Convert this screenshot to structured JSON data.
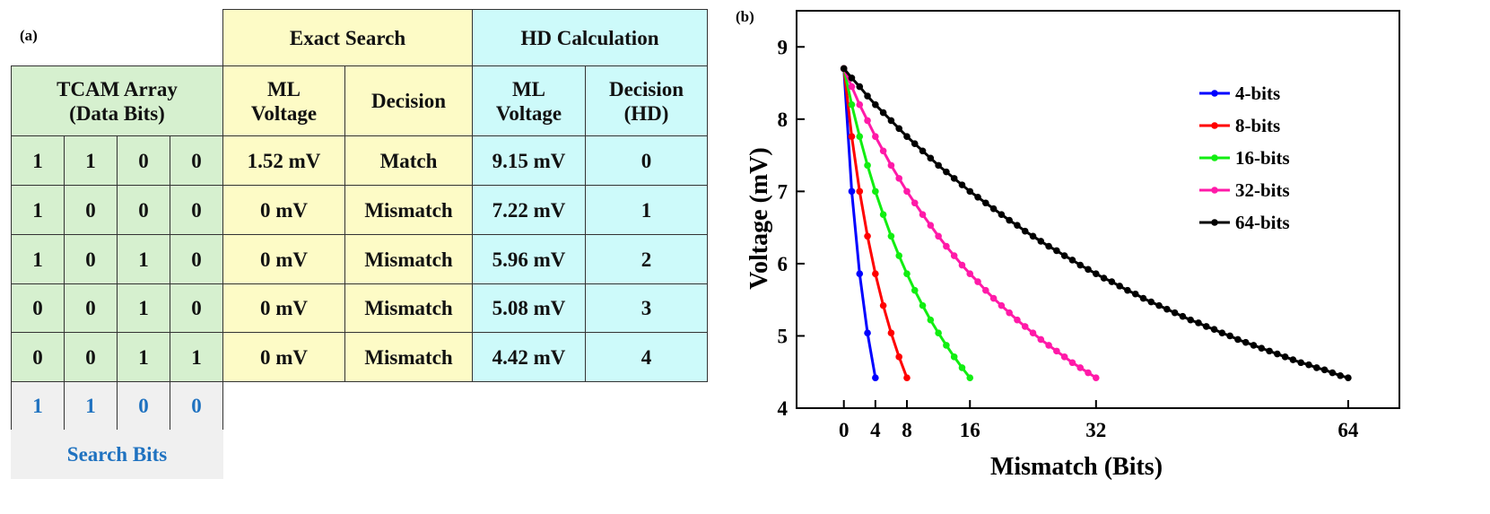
{
  "panel_a": {
    "label": "(a)",
    "groups": [
      "Exact Search",
      "HD Calculation"
    ],
    "headers": [
      [
        "TCAM Array",
        "(Data Bits)"
      ],
      [
        "ML",
        "Voltage"
      ],
      [
        "Decision"
      ],
      [
        "ML",
        "Voltage"
      ],
      [
        "Decision",
        "(HD)"
      ]
    ],
    "rows": [
      {
        "bits": [
          1,
          1,
          0,
          0
        ],
        "exact_voltage": "1.52 mV",
        "exact_decision": "Match",
        "hd_voltage": "9.15 mV",
        "hd": 0
      },
      {
        "bits": [
          1,
          0,
          0,
          0
        ],
        "exact_voltage": "0 mV",
        "exact_decision": "Mismatch",
        "hd_voltage": "7.22 mV",
        "hd": 1
      },
      {
        "bits": [
          1,
          0,
          1,
          0
        ],
        "exact_voltage": "0 mV",
        "exact_decision": "Mismatch",
        "hd_voltage": "5.96 mV",
        "hd": 2
      },
      {
        "bits": [
          0,
          0,
          1,
          0
        ],
        "exact_voltage": "0 mV",
        "exact_decision": "Mismatch",
        "hd_voltage": "5.08 mV",
        "hd": 3
      },
      {
        "bits": [
          0,
          0,
          1,
          1
        ],
        "exact_voltage": "0 mV",
        "exact_decision": "Mismatch",
        "hd_voltage": "4.42 mV",
        "hd": 4
      }
    ],
    "search_bits": [
      1,
      1,
      0,
      0
    ],
    "search_label": "Search Bits"
  },
  "chart_data": {
    "type": "line",
    "label": "(b)",
    "x_label": "Mismatch (Bits)",
    "y_label": "Voltage (mV)",
    "xlim": [
      -6,
      70.5
    ],
    "ylim": [
      4,
      9.5
    ],
    "xticks": [
      0,
      4,
      8,
      16,
      32,
      64
    ],
    "yticks": [
      4,
      5,
      6,
      7,
      8,
      9
    ],
    "legend": "upper right",
    "series": [
      {
        "name": "4-bits",
        "color": "#0000ff",
        "x": [
          0,
          1,
          2,
          3,
          4
        ],
        "values": [
          8.7,
          7.0,
          5.86,
          5.04,
          4.42
        ]
      },
      {
        "name": "8-bits",
        "color": "#ff0000",
        "x": [
          0,
          1,
          2,
          3,
          4,
          5,
          6,
          7,
          8
        ],
        "values": [
          8.7,
          7.76,
          7.0,
          6.38,
          5.86,
          5.42,
          5.04,
          4.71,
          4.42
        ]
      },
      {
        "name": "16-bits",
        "color": "#11ee11",
        "x": [
          0,
          1,
          2,
          3,
          4,
          5,
          6,
          7,
          8,
          9,
          10,
          11,
          12,
          13,
          14,
          15,
          16
        ],
        "values": [
          8.7,
          8.2,
          7.76,
          7.36,
          7.0,
          6.68,
          6.38,
          6.11,
          5.86,
          5.63,
          5.42,
          5.22,
          5.04,
          4.87,
          4.71,
          4.56,
          4.42
        ]
      },
      {
        "name": "32-bits",
        "color": "#ff1aa8",
        "x": [
          0,
          1,
          2,
          3,
          4,
          5,
          6,
          7,
          8,
          9,
          10,
          11,
          12,
          13,
          14,
          15,
          16,
          17,
          18,
          19,
          20,
          21,
          22,
          23,
          24,
          25,
          26,
          27,
          28,
          29,
          30,
          31,
          32
        ],
        "values": [
          8.7,
          8.45,
          8.2,
          7.98,
          7.76,
          7.56,
          7.36,
          7.18,
          7.0,
          6.84,
          6.68,
          6.53,
          6.38,
          6.24,
          6.11,
          5.98,
          5.86,
          5.75,
          5.63,
          5.52,
          5.42,
          5.32,
          5.22,
          5.13,
          5.04,
          4.95,
          4.87,
          4.79,
          4.71,
          4.63,
          4.56,
          4.49,
          4.42
        ]
      },
      {
        "name": "64-bits",
        "color": "#000000",
        "x": [
          0,
          1,
          2,
          3,
          4,
          5,
          6,
          7,
          8,
          9,
          10,
          11,
          12,
          13,
          14,
          15,
          16,
          17,
          18,
          19,
          20,
          21,
          22,
          23,
          24,
          25,
          26,
          27,
          28,
          29,
          30,
          31,
          32,
          33,
          34,
          35,
          36,
          37,
          38,
          39,
          40,
          41,
          42,
          43,
          44,
          45,
          46,
          47,
          48,
          49,
          50,
          51,
          52,
          53,
          54,
          55,
          56,
          57,
          58,
          59,
          60,
          61,
          62,
          63,
          64
        ],
        "values": [
          8.7,
          8.57,
          8.45,
          8.32,
          8.2,
          8.09,
          7.98,
          7.87,
          7.76,
          7.66,
          7.56,
          7.46,
          7.36,
          7.27,
          7.18,
          7.09,
          7.0,
          6.92,
          6.84,
          6.76,
          6.68,
          6.6,
          6.53,
          6.45,
          6.38,
          6.31,
          6.24,
          6.18,
          6.11,
          6.05,
          5.98,
          5.92,
          5.86,
          5.8,
          5.75,
          5.69,
          5.63,
          5.58,
          5.52,
          5.47,
          5.42,
          5.37,
          5.32,
          5.27,
          5.22,
          5.18,
          5.13,
          5.09,
          5.04,
          5.0,
          4.95,
          4.91,
          4.87,
          4.83,
          4.79,
          4.75,
          4.71,
          4.67,
          4.63,
          4.6,
          4.56,
          4.53,
          4.49,
          4.45,
          4.42
        ]
      }
    ]
  }
}
